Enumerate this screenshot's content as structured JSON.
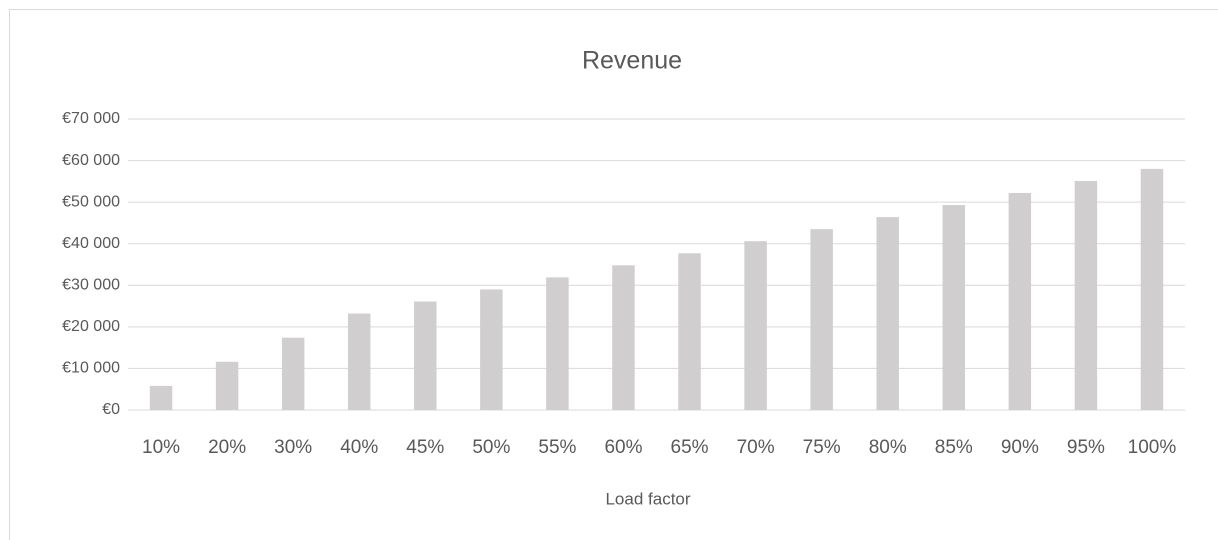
{
  "chart_data": {
    "type": "bar",
    "title": "Revenue",
    "x_label": "Load factor",
    "categories": [
      "10%",
      "20%",
      "30%",
      "40%",
      "45%",
      "50%",
      "55%",
      "60%",
      "65%",
      "70%",
      "75%",
      "80%",
      "85%",
      "90%",
      "95%",
      "100%"
    ],
    "values": [
      5800,
      11600,
      17400,
      23200,
      26100,
      29000,
      31900,
      34800,
      37700,
      40600,
      43500,
      46400,
      49300,
      52200,
      55100,
      58000
    ],
    "color": "#d0cece",
    "ylim": [
      0,
      70000
    ],
    "yticks": [
      {
        "value": 0,
        "label": "€0"
      },
      {
        "value": 10000,
        "label": "€10 000"
      },
      {
        "value": 20000,
        "label": "€20 000"
      },
      {
        "value": 30000,
        "label": "€30 000"
      },
      {
        "value": 40000,
        "label": "€40 000"
      },
      {
        "value": 50000,
        "label": "€50 000"
      },
      {
        "value": 60000,
        "label": "€60 000"
      },
      {
        "value": 70000,
        "label": "€70 000"
      }
    ],
    "grid": true
  }
}
